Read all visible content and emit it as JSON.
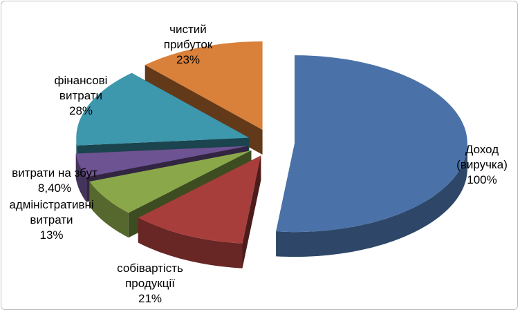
{
  "chart_data": {
    "type": "pie",
    "categories": [
      "Доход (виручка)",
      "собівартість продукції",
      "адміністративні витрати",
      "витрати на збут",
      "фінансові витрати",
      "чистий прибуток"
    ],
    "values": [
      100,
      21,
      13,
      8.4,
      28,
      23
    ],
    "value_labels": [
      "100%",
      "21%",
      "13%",
      "8,40%",
      "28%",
      "23%"
    ],
    "colors": [
      "#4a72a8",
      "#a83e3c",
      "#8aa84a",
      "#6e5393",
      "#3d97ad",
      "#d9803a"
    ]
  }
}
